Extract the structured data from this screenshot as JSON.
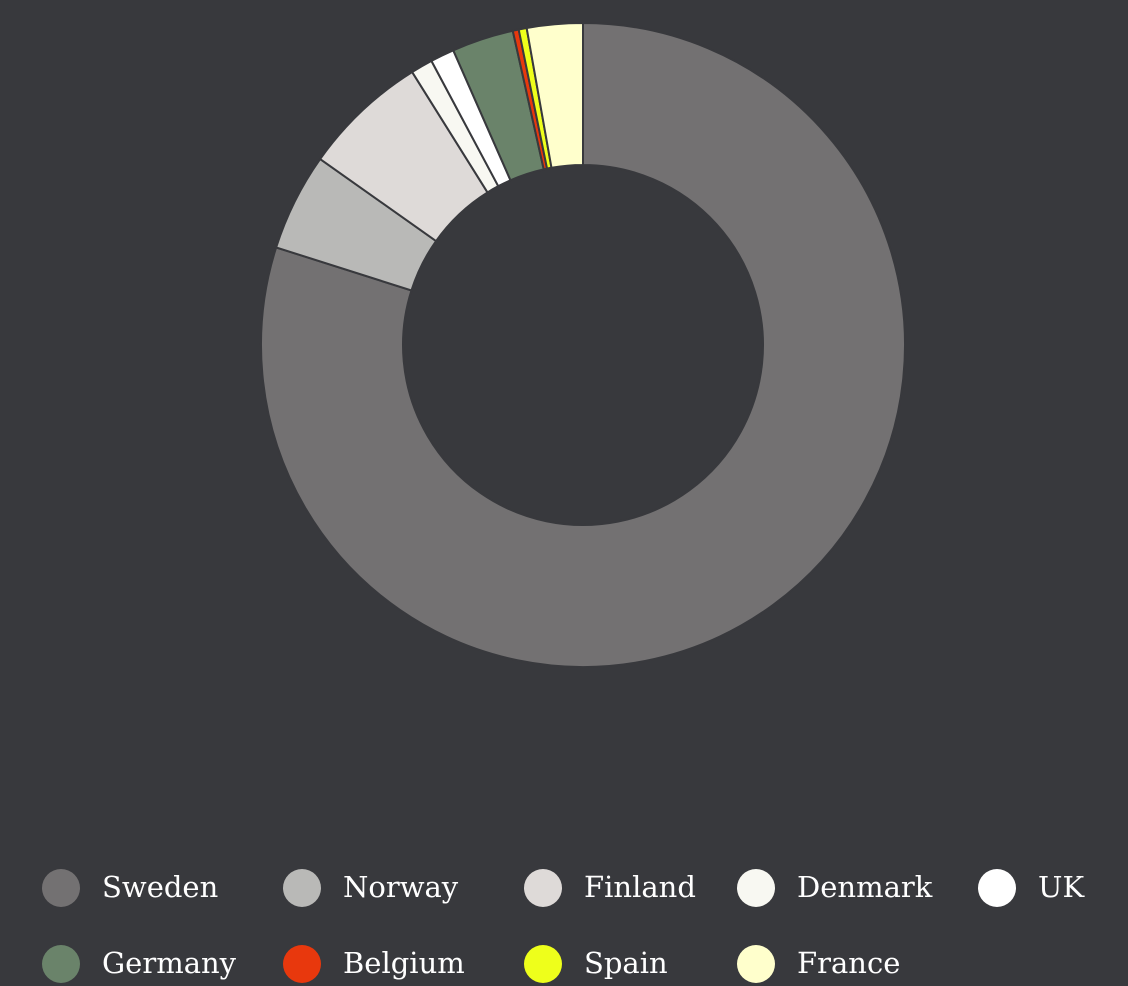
{
  "chart_data": {
    "type": "donut",
    "categories": [
      "Sweden",
      "Norway",
      "Finland",
      "Denmark",
      "UK",
      "Germany",
      "Belgium",
      "Spain",
      "France"
    ],
    "values": [
      79.9,
      4.9,
      6.3,
      1.1,
      1.2,
      3.1,
      0.3,
      0.4,
      2.8
    ],
    "colors": [
      "#737172",
      "#b9b9b7",
      "#dedad8",
      "#f8f8f2",
      "#ffffff",
      "#6a836a",
      "#e8380d",
      "#eeff1b",
      "#ffffcc"
    ],
    "legend": "bottom"
  }
}
